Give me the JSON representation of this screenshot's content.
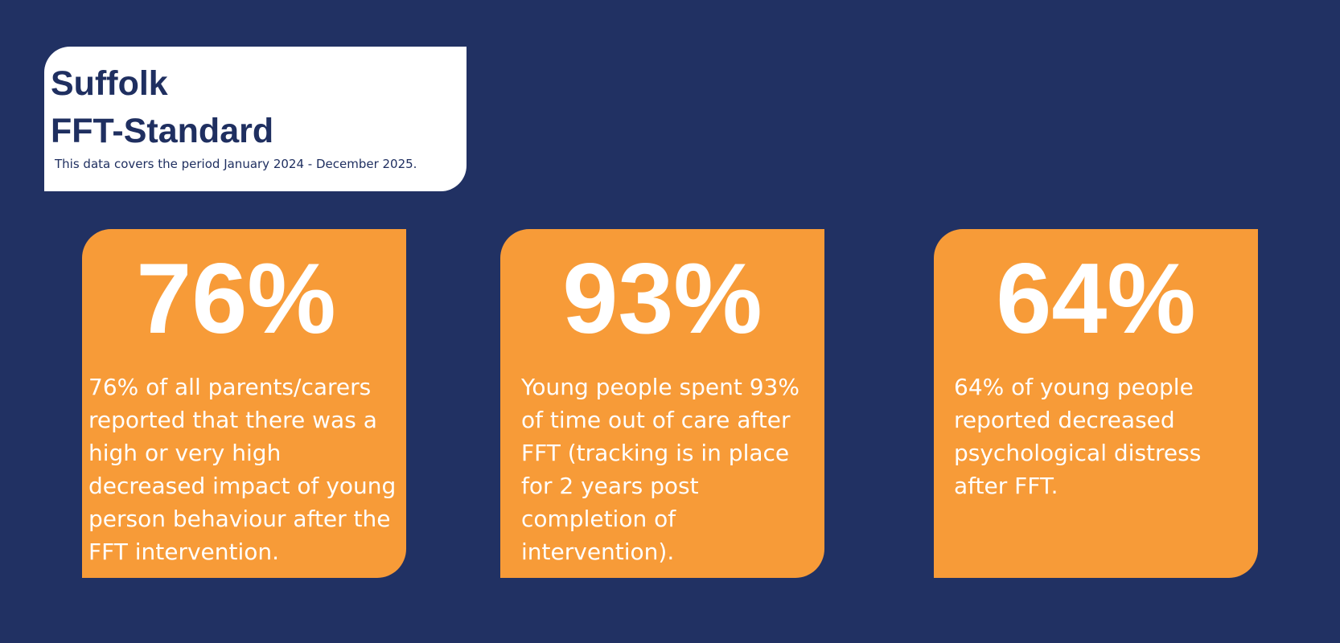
{
  "header": {
    "title": [
      "Suffolk",
      "FFT-Standard"
    ],
    "subtitle": "This data covers the period January 2024 - December 2025."
  },
  "cards": [
    {
      "stat": "76%",
      "text": "76% of all parents/carers reported that there was a high or very high decreased impact of young person behaviour after the FFT intervention."
    },
    {
      "stat": "93%",
      "text": "Young people spent 93% of time out of care after FFT (tracking is in place for 2 years post completion of intervention)."
    },
    {
      "stat": "64%",
      "text": "64% of young people reported decreased psychological distress after FFT."
    }
  ]
}
